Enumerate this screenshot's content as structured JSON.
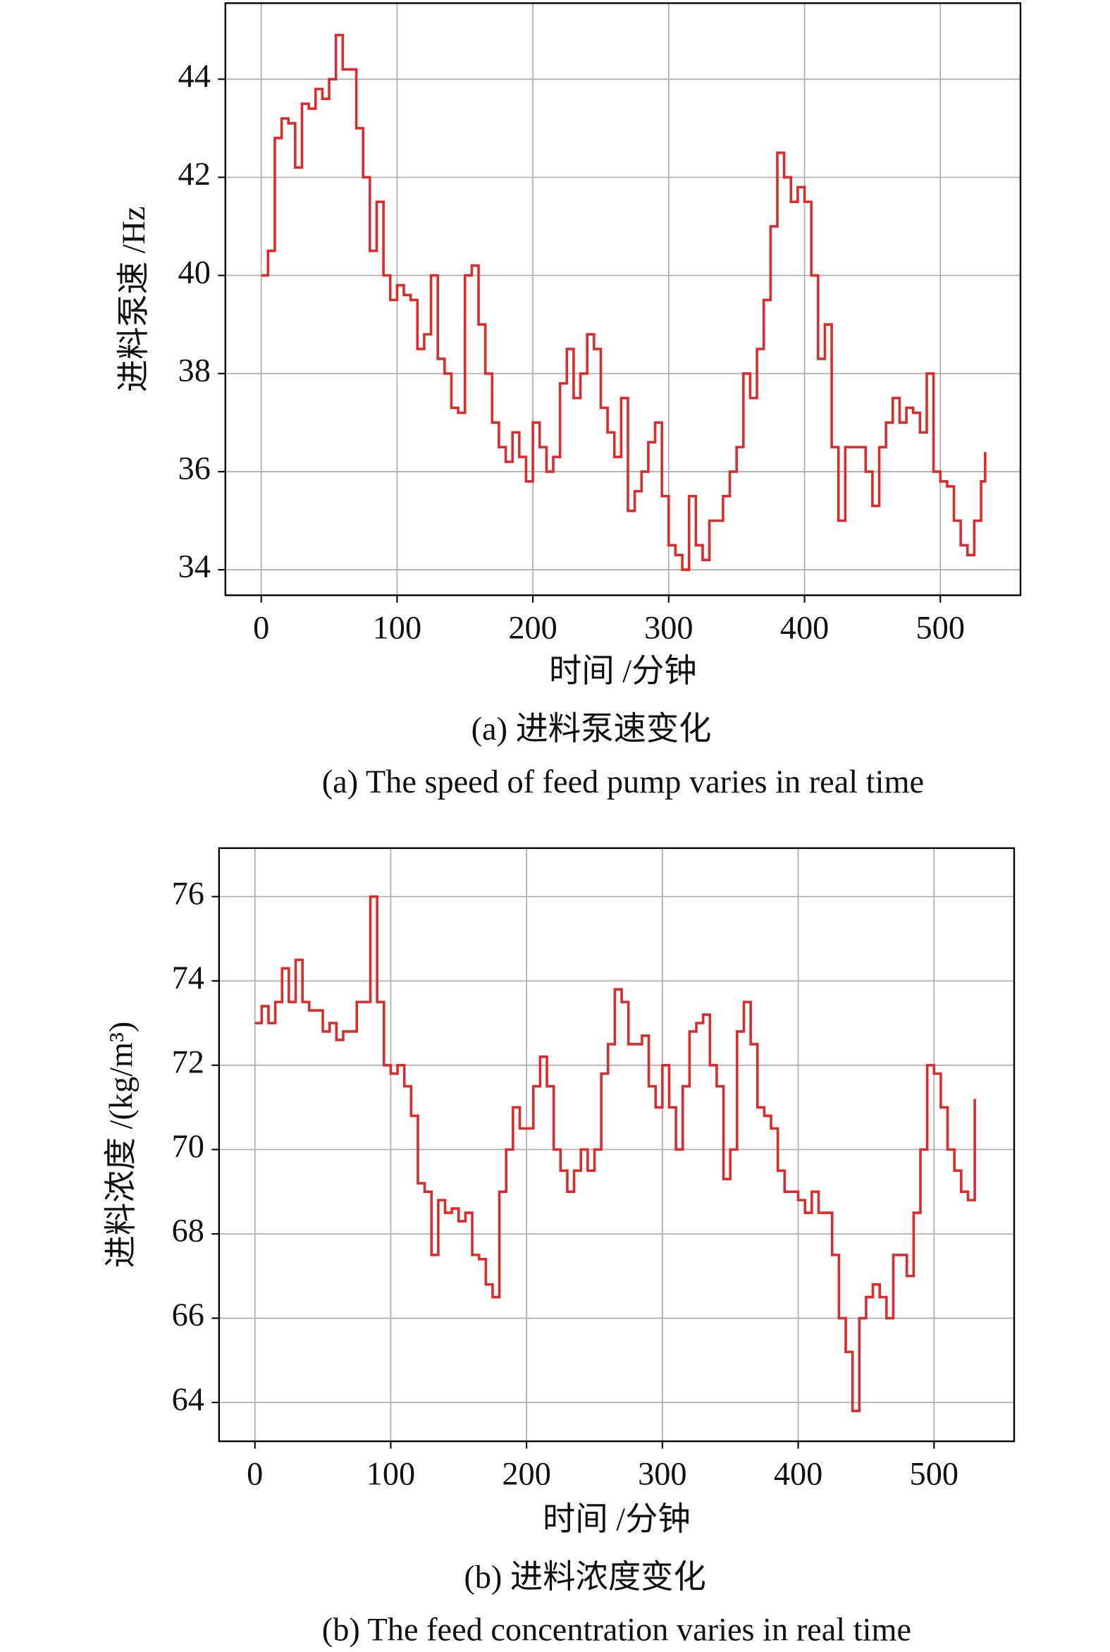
{
  "chart_data": [
    {
      "type": "line",
      "y_label": "进料泵速 /Hz",
      "x_label": "时间 /分钟",
      "caption": "(a) 进料泵速变化",
      "caption_en": "(a) The speed of feed pump varies in real time",
      "x": [
        0,
        5,
        10,
        15,
        20,
        25,
        30,
        35,
        40,
        45,
        50,
        55,
        60,
        65,
        70,
        75,
        80,
        85,
        90,
        95,
        100,
        105,
        110,
        115,
        120,
        125,
        130,
        135,
        140,
        145,
        150,
        155,
        160,
        165,
        170,
        175,
        180,
        185,
        190,
        195,
        200,
        205,
        210,
        215,
        220,
        225,
        230,
        235,
        240,
        245,
        250,
        255,
        260,
        265,
        270,
        275,
        280,
        285,
        290,
        295,
        300,
        305,
        310,
        315,
        320,
        325,
        330,
        335,
        340,
        345,
        350,
        355,
        360,
        365,
        370,
        375,
        380,
        385,
        390,
        395,
        400,
        405,
        410,
        415,
        420,
        425,
        430,
        435,
        440,
        445,
        450,
        455,
        460,
        465,
        470,
        475,
        480,
        485,
        490,
        495,
        500,
        505,
        510,
        515,
        520,
        525,
        530,
        533
      ],
      "series": [
        {
          "name": "speed",
          "color": "#de2a2a",
          "values": [
            40,
            40.5,
            42.8,
            43.2,
            43.1,
            42.2,
            43.5,
            43.4,
            43.8,
            43.6,
            44,
            44.9,
            44.2,
            44.2,
            43,
            42,
            40.5,
            41.5,
            40,
            39.5,
            39.8,
            39.6,
            39.5,
            38.5,
            38.8,
            40,
            38.3,
            38,
            37.3,
            37.2,
            40,
            40.2,
            39,
            38,
            37,
            36.5,
            36.2,
            36.8,
            36.3,
            35.8,
            37,
            36.5,
            36,
            36.3,
            37.8,
            38.5,
            37.5,
            38,
            38.8,
            38.5,
            37.3,
            36.8,
            36.3,
            37.5,
            35.2,
            35.6,
            36,
            36.6,
            37,
            35.5,
            34.5,
            34.3,
            34,
            35.5,
            34.5,
            34.2,
            35,
            35,
            35.5,
            36,
            36.5,
            38,
            37.5,
            38.5,
            39.5,
            41,
            42.5,
            42,
            41.5,
            41.8,
            41.5,
            40,
            38.3,
            39,
            36.5,
            35,
            36.5,
            36.5,
            36.5,
            36,
            35.3,
            36.5,
            37,
            37.5,
            37,
            37.3,
            37.2,
            36.8,
            38,
            36,
            35.8,
            35.7,
            35,
            34.5,
            34.3,
            35,
            35.8,
            36.4
          ]
        }
      ],
      "xlim": [
        -26.4,
        559
      ],
      "ylim": [
        33.48,
        45.55
      ],
      "xticks": [
        0,
        100,
        200,
        300,
        400,
        500
      ],
      "yticks": [
        34,
        36,
        38,
        40,
        42,
        44
      ],
      "grid": true
    },
    {
      "type": "line",
      "y_label": "进料浓度 /(kg/m³)",
      "x_label": "时间 /分钟",
      "caption": "(b) 进料浓度变化",
      "caption_en": "(b) The feed concentration varies in real time",
      "x": [
        0,
        5,
        10,
        15,
        20,
        25,
        30,
        35,
        40,
        45,
        50,
        55,
        60,
        65,
        70,
        75,
        80,
        85,
        90,
        95,
        100,
        105,
        110,
        115,
        120,
        125,
        130,
        135,
        140,
        145,
        150,
        155,
        160,
        165,
        170,
        175,
        180,
        185,
        190,
        195,
        200,
        205,
        210,
        215,
        220,
        225,
        230,
        235,
        240,
        245,
        250,
        255,
        260,
        265,
        270,
        275,
        280,
        285,
        290,
        295,
        300,
        305,
        310,
        315,
        320,
        325,
        330,
        335,
        340,
        345,
        350,
        355,
        360,
        365,
        370,
        375,
        380,
        385,
        390,
        395,
        400,
        405,
        410,
        415,
        420,
        425,
        430,
        435,
        440,
        445,
        450,
        455,
        460,
        465,
        470,
        475,
        480,
        485,
        490,
        495,
        500,
        505,
        510,
        515,
        520,
        525,
        530
      ],
      "series": [
        {
          "name": "concentration",
          "color": "#de2a2a",
          "values": [
            73,
            73.4,
            73,
            73.5,
            74.3,
            73.5,
            74.5,
            73.5,
            73.3,
            73.3,
            72.8,
            73,
            72.6,
            72.8,
            72.8,
            73.5,
            73.5,
            76,
            73.5,
            72,
            71.8,
            72,
            71.5,
            70.8,
            69.2,
            69,
            67.5,
            68.8,
            68.5,
            68.6,
            68.3,
            68.5,
            67.5,
            67.4,
            66.8,
            66.5,
            69,
            70,
            71,
            70.5,
            70.5,
            71.5,
            72.2,
            71.5,
            70,
            69.5,
            69,
            69.5,
            70,
            69.5,
            70,
            71.8,
            72.5,
            73.8,
            73.5,
            72.5,
            72.5,
            72.7,
            71.5,
            71,
            72,
            71,
            70,
            71.5,
            72.8,
            73,
            73.2,
            72,
            71.5,
            69.3,
            70,
            72.8,
            73.5,
            72.5,
            71,
            70.8,
            70.5,
            69.5,
            69,
            69,
            68.8,
            68.5,
            69,
            68.5,
            68.5,
            67.5,
            66,
            65.2,
            63.8,
            66,
            66.5,
            66.8,
            66.5,
            66,
            67.5,
            67.5,
            67,
            68.5,
            70,
            72,
            71.8,
            71,
            70,
            69.5,
            69,
            68.8,
            71.2
          ]
        }
      ],
      "xlim": [
        -26.4,
        559
      ],
      "ylim": [
        63.08,
        77.15
      ],
      "xticks": [
        0,
        100,
        200,
        300,
        400,
        500
      ],
      "yticks": [
        64,
        66,
        68,
        70,
        72,
        74,
        76
      ],
      "grid": true
    }
  ]
}
